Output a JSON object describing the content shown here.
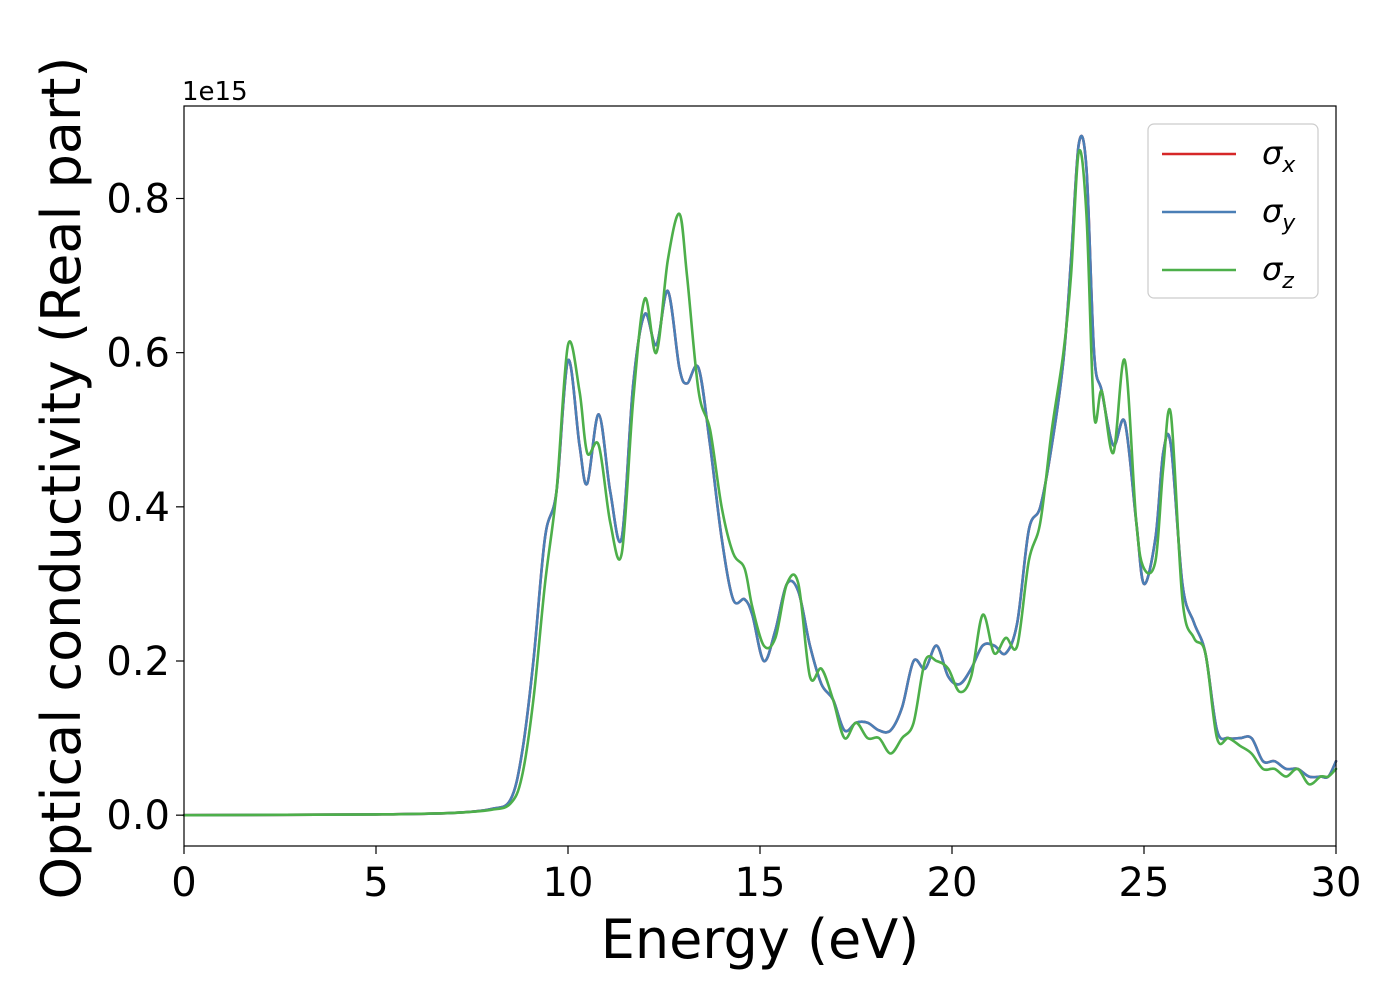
{
  "chart_data": {
    "type": "line",
    "xlabel": "Energy (eV)",
    "ylabel": "Optical conductivity (Real part)",
    "y_offset_text": "1e15",
    "xlim": [
      0,
      30
    ],
    "ylim": [
      -0.04,
      0.92
    ],
    "x_ticks": [
      0,
      5,
      10,
      15,
      20,
      25,
      30
    ],
    "x_tick_labels": [
      "0",
      "5",
      "10",
      "15",
      "20",
      "25",
      "30"
    ],
    "y_ticks": [
      0.0,
      0.2,
      0.4,
      0.6,
      0.8
    ],
    "y_tick_labels": [
      "0.0",
      "0.2",
      "0.4",
      "0.6",
      "0.8"
    ],
    "grid": false,
    "legend": {
      "placement": "top-right"
    },
    "series": [
      {
        "name": "σx",
        "symbol": "σ",
        "subscript": "x",
        "color": "#d62728",
        "x": [
          0,
          5,
          7,
          8,
          8.5,
          8.8,
          9.1,
          9.4,
          9.7,
          10.0,
          10.3,
          10.5,
          10.8,
          11.1,
          11.4,
          11.7,
          12.0,
          12.3,
          12.6,
          12.9,
          13.1,
          13.4,
          13.7,
          14.0,
          14.3,
          14.6,
          14.8,
          15.1,
          15.4,
          15.7,
          16.0,
          16.3,
          16.6,
          16.9,
          17.2,
          17.5,
          17.8,
          18.1,
          18.4,
          18.7,
          19.0,
          19.3,
          19.6,
          19.9,
          20.2,
          20.5,
          20.8,
          21.1,
          21.4,
          21.7,
          22.0,
          22.3,
          22.6,
          22.9,
          23.1,
          23.3,
          23.5,
          23.7,
          23.9,
          24.2,
          24.5,
          24.8,
          25.0,
          25.3,
          25.5,
          25.7,
          26.0,
          26.3,
          26.6,
          26.9,
          27.2,
          27.5,
          27.8,
          28.1,
          28.4,
          28.7,
          29.0,
          29.3,
          29.6,
          29.8,
          30.0
        ],
        "y": [
          0.0,
          0.001,
          0.003,
          0.008,
          0.02,
          0.08,
          0.2,
          0.36,
          0.42,
          0.59,
          0.48,
          0.43,
          0.52,
          0.42,
          0.36,
          0.56,
          0.65,
          0.61,
          0.68,
          0.58,
          0.56,
          0.58,
          0.48,
          0.36,
          0.28,
          0.28,
          0.26,
          0.2,
          0.24,
          0.3,
          0.29,
          0.22,
          0.17,
          0.15,
          0.11,
          0.12,
          0.12,
          0.11,
          0.11,
          0.14,
          0.2,
          0.19,
          0.22,
          0.18,
          0.17,
          0.19,
          0.22,
          0.22,
          0.21,
          0.25,
          0.37,
          0.4,
          0.48,
          0.59,
          0.72,
          0.87,
          0.84,
          0.6,
          0.55,
          0.48,
          0.51,
          0.38,
          0.3,
          0.36,
          0.47,
          0.48,
          0.3,
          0.25,
          0.21,
          0.11,
          0.1,
          0.1,
          0.1,
          0.07,
          0.07,
          0.06,
          0.06,
          0.05,
          0.05,
          0.05,
          0.07
        ]
      },
      {
        "name": "σy",
        "symbol": "σ",
        "subscript": "y",
        "color": "#4a7fb6",
        "x": [
          0,
          5,
          7,
          8,
          8.5,
          8.8,
          9.1,
          9.4,
          9.7,
          10.0,
          10.3,
          10.5,
          10.8,
          11.1,
          11.4,
          11.7,
          12.0,
          12.3,
          12.6,
          12.9,
          13.1,
          13.4,
          13.7,
          14.0,
          14.3,
          14.6,
          14.8,
          15.1,
          15.4,
          15.7,
          16.0,
          16.3,
          16.6,
          16.9,
          17.2,
          17.5,
          17.8,
          18.1,
          18.4,
          18.7,
          19.0,
          19.3,
          19.6,
          19.9,
          20.2,
          20.5,
          20.8,
          21.1,
          21.4,
          21.7,
          22.0,
          22.3,
          22.6,
          22.9,
          23.1,
          23.3,
          23.5,
          23.7,
          23.9,
          24.2,
          24.5,
          24.8,
          25.0,
          25.3,
          25.5,
          25.7,
          26.0,
          26.3,
          26.6,
          26.9,
          27.2,
          27.5,
          27.8,
          28.1,
          28.4,
          28.7,
          29.0,
          29.3,
          29.6,
          29.8,
          30.0
        ],
        "y": [
          0.0,
          0.001,
          0.003,
          0.008,
          0.02,
          0.08,
          0.2,
          0.36,
          0.42,
          0.59,
          0.48,
          0.43,
          0.52,
          0.42,
          0.36,
          0.56,
          0.65,
          0.61,
          0.68,
          0.58,
          0.56,
          0.58,
          0.48,
          0.36,
          0.28,
          0.28,
          0.26,
          0.2,
          0.24,
          0.3,
          0.29,
          0.22,
          0.17,
          0.15,
          0.11,
          0.12,
          0.12,
          0.11,
          0.11,
          0.14,
          0.2,
          0.19,
          0.22,
          0.18,
          0.17,
          0.19,
          0.22,
          0.22,
          0.21,
          0.25,
          0.37,
          0.4,
          0.48,
          0.59,
          0.72,
          0.87,
          0.84,
          0.6,
          0.55,
          0.48,
          0.51,
          0.38,
          0.3,
          0.36,
          0.47,
          0.48,
          0.3,
          0.25,
          0.21,
          0.11,
          0.1,
          0.1,
          0.1,
          0.07,
          0.07,
          0.06,
          0.06,
          0.05,
          0.05,
          0.05,
          0.07
        ]
      },
      {
        "name": "σz",
        "symbol": "σ",
        "subscript": "z",
        "color": "#4daf4a",
        "x": [
          0,
          5,
          7,
          8,
          8.5,
          8.8,
          9.1,
          9.4,
          9.7,
          10.0,
          10.3,
          10.5,
          10.8,
          11.1,
          11.4,
          11.7,
          12.0,
          12.3,
          12.6,
          12.9,
          13.1,
          13.4,
          13.7,
          14.0,
          14.3,
          14.6,
          14.8,
          15.1,
          15.4,
          15.7,
          16.0,
          16.3,
          16.6,
          16.9,
          17.2,
          17.5,
          17.8,
          18.1,
          18.4,
          18.7,
          19.0,
          19.3,
          19.6,
          19.9,
          20.2,
          20.5,
          20.8,
          21.1,
          21.4,
          21.7,
          22.0,
          22.3,
          22.6,
          22.9,
          23.1,
          23.3,
          23.5,
          23.7,
          23.9,
          24.2,
          24.5,
          24.8,
          25.0,
          25.3,
          25.5,
          25.7,
          26.0,
          26.3,
          26.6,
          26.9,
          27.2,
          27.5,
          27.8,
          28.1,
          28.4,
          28.7,
          29.0,
          29.3,
          29.6,
          29.8,
          30.0
        ],
        "y": [
          0.0,
          0.001,
          0.003,
          0.007,
          0.015,
          0.05,
          0.15,
          0.3,
          0.42,
          0.61,
          0.55,
          0.47,
          0.48,
          0.38,
          0.34,
          0.54,
          0.67,
          0.6,
          0.72,
          0.78,
          0.7,
          0.55,
          0.5,
          0.4,
          0.34,
          0.32,
          0.27,
          0.22,
          0.23,
          0.3,
          0.3,
          0.18,
          0.19,
          0.15,
          0.1,
          0.12,
          0.1,
          0.1,
          0.08,
          0.1,
          0.12,
          0.2,
          0.2,
          0.19,
          0.16,
          0.18,
          0.26,
          0.21,
          0.23,
          0.22,
          0.33,
          0.38,
          0.5,
          0.6,
          0.7,
          0.86,
          0.78,
          0.52,
          0.55,
          0.47,
          0.59,
          0.38,
          0.32,
          0.33,
          0.45,
          0.52,
          0.28,
          0.23,
          0.21,
          0.1,
          0.1,
          0.09,
          0.08,
          0.06,
          0.06,
          0.05,
          0.06,
          0.04,
          0.05,
          0.05,
          0.06
        ]
      }
    ]
  }
}
